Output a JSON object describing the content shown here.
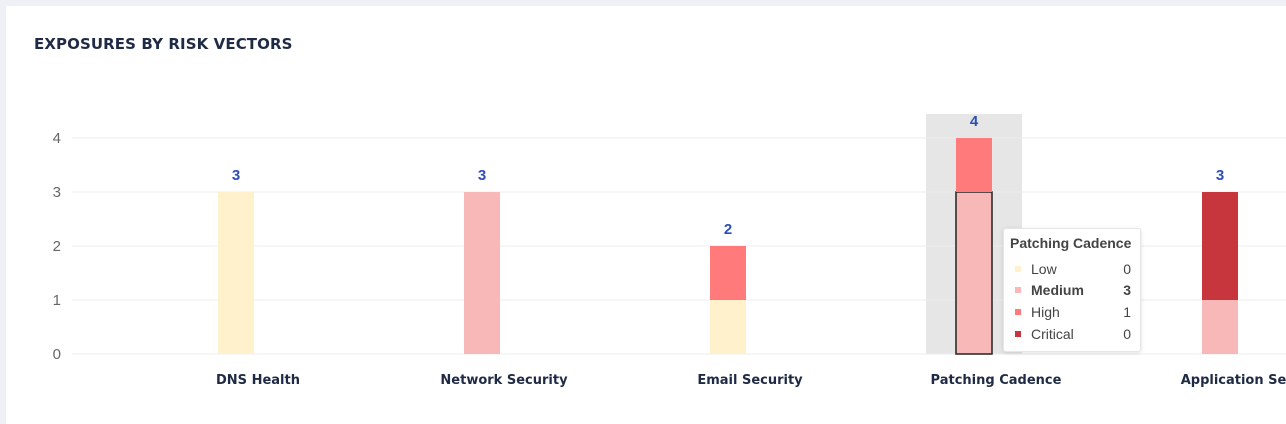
{
  "header": {
    "title": "EXPOSURES BY RISK VECTORS"
  },
  "chart_data": {
    "type": "bar",
    "stacked": true,
    "title": "EXPOSURES BY RISK VECTORS",
    "categories": [
      "DNS Health",
      "Network Security",
      "Email Security",
      "Patching Cadence",
      "Application Secu"
    ],
    "series": [
      {
        "name": "Low",
        "color": "#fff1cc",
        "values": [
          3,
          0,
          1,
          0,
          0
        ]
      },
      {
        "name": "Medium",
        "color": "#f9b8b8",
        "values": [
          0,
          3,
          0,
          3,
          1
        ]
      },
      {
        "name": "High",
        "color": "#ff7b7b",
        "values": [
          0,
          0,
          1,
          1,
          0
        ]
      },
      {
        "name": "Critical",
        "color": "#c8363d",
        "values": [
          0,
          0,
          0,
          0,
          2
        ]
      }
    ],
    "totals": [
      3,
      3,
      2,
      4,
      3
    ],
    "ylim": [
      0,
      4
    ],
    "yticks": [
      "0",
      "1",
      "2",
      "3",
      "4"
    ],
    "grid": true,
    "highlighted_category": "Patching Cadence",
    "highlighted_series": "Medium",
    "total_label_color": "#2d4fb5",
    "highlight_band_color": "#e6e6e6"
  },
  "tooltip": {
    "title": "Patching Cadence",
    "rows": [
      {
        "name": "Low",
        "value": "0",
        "color": "#fff1cc"
      },
      {
        "name": "Medium",
        "value": "3",
        "color": "#f9b8b8"
      },
      {
        "name": "High",
        "value": "1",
        "color": "#ff7b7b"
      },
      {
        "name": "Critical",
        "value": "0",
        "color": "#c8363d"
      }
    ]
  }
}
